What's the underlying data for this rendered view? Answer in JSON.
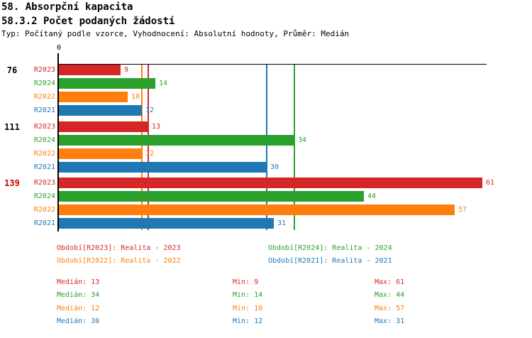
{
  "header": {
    "title_line1": "58. Absorpční kapacita",
    "title_line2": "58.3.2 Počet podaných žádostí",
    "subtitle": "Typ: Počítaný podle vzorce, Vyhodnocení: Absolutní hodnoty, Průměr: Medián"
  },
  "chart_data": {
    "type": "bar",
    "orientation": "horizontal_grouped",
    "title": "58.3.2 Počet podaných žádostí",
    "axis": {
      "origin_label": "0",
      "xmin": 0,
      "xmax_visible": 61.6,
      "grid": false
    },
    "series_order": [
      "R2023",
      "R2024",
      "R2022",
      "R2021"
    ],
    "colors": {
      "R2023": "#d62728",
      "R2024": "#2ca02c",
      "R2022": "#ff7f0e",
      "R2021": "#1f77b4"
    },
    "groups": [
      {
        "label": "76",
        "label_color": "#000000",
        "values": [
          9,
          14,
          10,
          12
        ]
      },
      {
        "label": "111",
        "label_color": "#000000",
        "values": [
          13,
          34,
          12,
          30
        ]
      },
      {
        "label": "139",
        "label_color": "#cc0000",
        "values": [
          61,
          44,
          57,
          31
        ]
      }
    ],
    "median_lines": [
      {
        "series": "R2023",
        "value": 13
      },
      {
        "series": "R2024",
        "value": 34
      },
      {
        "series": "R2022",
        "value": 12
      },
      {
        "series": "R2021",
        "value": 30
      }
    ]
  },
  "legend": {
    "items": [
      {
        "series": "R2023",
        "label": "Období[R2023]: Realita - 2023",
        "color": "#d62728",
        "row": 0,
        "col": 0
      },
      {
        "series": "R2024",
        "label": "Období[R2024]: Realita - 2024",
        "color": "#2ca02c",
        "row": 0,
        "col": 1
      },
      {
        "series": "R2022",
        "label": "Období[R2022]: Realita - 2022",
        "color": "#ff7f0e",
        "row": 1,
        "col": 0
      },
      {
        "series": "R2021",
        "label": "Období[R2021]: Realita - 2021",
        "color": "#1f77b4",
        "row": 1,
        "col": 1
      }
    ]
  },
  "stats": {
    "rows": [
      {
        "series": "R2023",
        "color": "#d62728",
        "median": "Medián: 13",
        "min": "Min: 9",
        "max": "Max: 61"
      },
      {
        "series": "R2024",
        "color": "#2ca02c",
        "median": "Medián: 34",
        "min": "Min: 14",
        "max": "Max: 44"
      },
      {
        "series": "R2022",
        "color": "#ff7f0e",
        "median": "Medián: 12",
        "min": "Min: 10",
        "max": "Max: 57"
      },
      {
        "series": "R2021",
        "color": "#1f77b4",
        "median": "Medián: 30",
        "min": "Min: 12",
        "max": "Max: 31"
      }
    ]
  }
}
